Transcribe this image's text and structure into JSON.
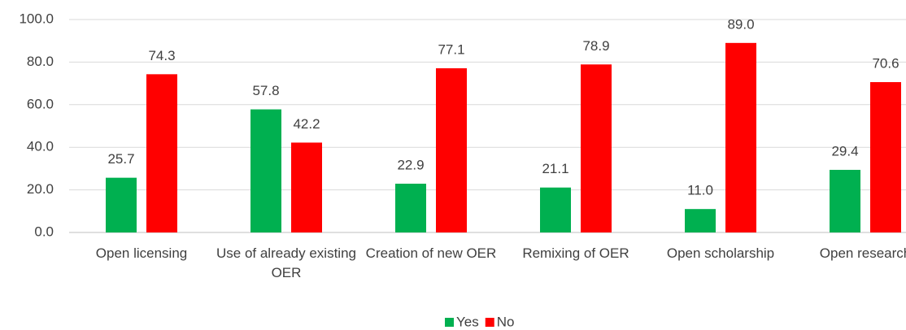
{
  "chart_data": {
    "type": "bar",
    "categories": [
      "Open licensing",
      "Use of already existing OER",
      "Creation of new OER",
      "Remixing of OER",
      "Open scholarship",
      "Open research"
    ],
    "series": [
      {
        "name": "Yes",
        "color": "#00b050",
        "values": [
          25.7,
          57.8,
          22.9,
          21.1,
          11.0,
          29.4
        ],
        "value_labels": [
          "25.7",
          "57.8",
          "22.9",
          "21.1",
          "11.0",
          "29.4"
        ]
      },
      {
        "name": "No",
        "color": "#ff0000",
        "values": [
          74.3,
          42.2,
          77.1,
          78.9,
          89.0,
          70.6
        ],
        "value_labels": [
          "74.3",
          "42.2",
          "77.1",
          "78.9",
          "89.0",
          "70.6"
        ]
      }
    ],
    "ylim": [
      0,
      100
    ],
    "yticks": [
      {
        "value": 0,
        "label": "0.0"
      },
      {
        "value": 20,
        "label": "20.0"
      },
      {
        "value": 40,
        "label": "40.0"
      },
      {
        "value": 60,
        "label": "60.0"
      },
      {
        "value": 80,
        "label": "80.0"
      },
      {
        "value": 100,
        "label": "100.0"
      }
    ],
    "grid": true,
    "legend": "bottom"
  }
}
